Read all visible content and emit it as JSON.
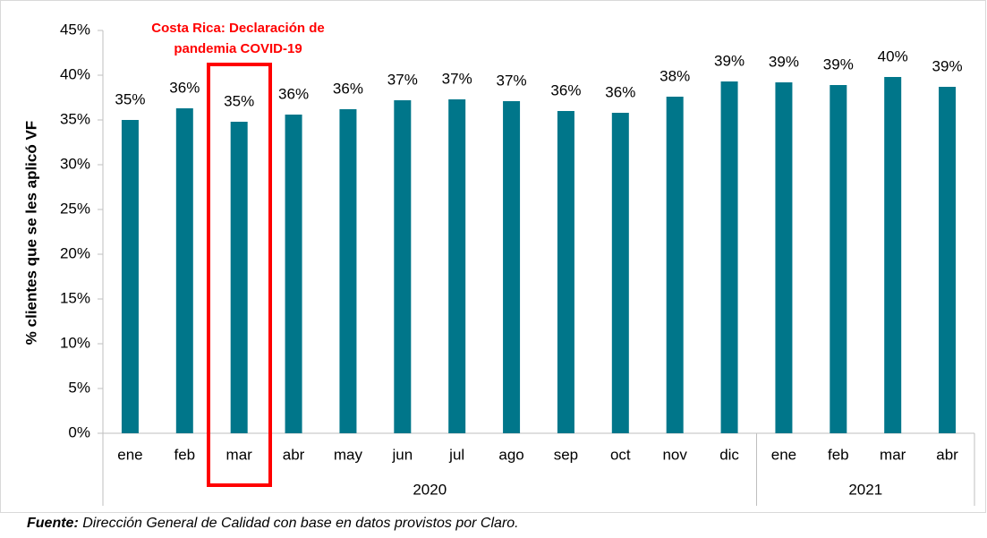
{
  "chart_data": {
    "type": "bar",
    "ylabel": "% clientes que se les aplicó VF",
    "annotation": [
      "Costa Rica: Declaración de",
      "pandemia COVID-19"
    ],
    "source_label": "Fuente:",
    "source": "Dirección General de Calidad con base en datos provistos por Claro.",
    "color": "#00768a",
    "groups": [
      {
        "label": "2020",
        "categories": [
          "ene",
          "feb",
          "mar",
          "abr",
          "may",
          "jun",
          "jul",
          "ago",
          "sep",
          "oct",
          "nov",
          "dic"
        ],
        "values": [
          35.0,
          36.3,
          34.8,
          35.6,
          36.2,
          37.2,
          37.3,
          37.1,
          36.0,
          35.8,
          37.6,
          39.3
        ],
        "value_labels": [
          "35%",
          "36%",
          "35%",
          "36%",
          "36%",
          "37%",
          "37%",
          "37%",
          "36%",
          "36%",
          "38%",
          "39%"
        ]
      },
      {
        "label": "2021",
        "categories": [
          "ene",
          "feb",
          "mar",
          "abr"
        ],
        "values": [
          39.2,
          38.9,
          39.8,
          38.7
        ],
        "value_labels": [
          "39%",
          "39%",
          "40%",
          "39%"
        ]
      }
    ],
    "ylim": [
      0,
      45
    ],
    "yticks": [
      {
        "value": 0,
        "label": "0%"
      },
      {
        "value": 5,
        "label": "5%"
      },
      {
        "value": 10,
        "label": "10%"
      },
      {
        "value": 15,
        "label": "15%"
      },
      {
        "value": 20,
        "label": "20%"
      },
      {
        "value": 25,
        "label": "25%"
      },
      {
        "value": 30,
        "label": "30%"
      },
      {
        "value": 35,
        "label": "35%"
      },
      {
        "value": 40,
        "label": "40%"
      },
      {
        "value": 45,
        "label": "45%"
      }
    ],
    "grid": false
  }
}
